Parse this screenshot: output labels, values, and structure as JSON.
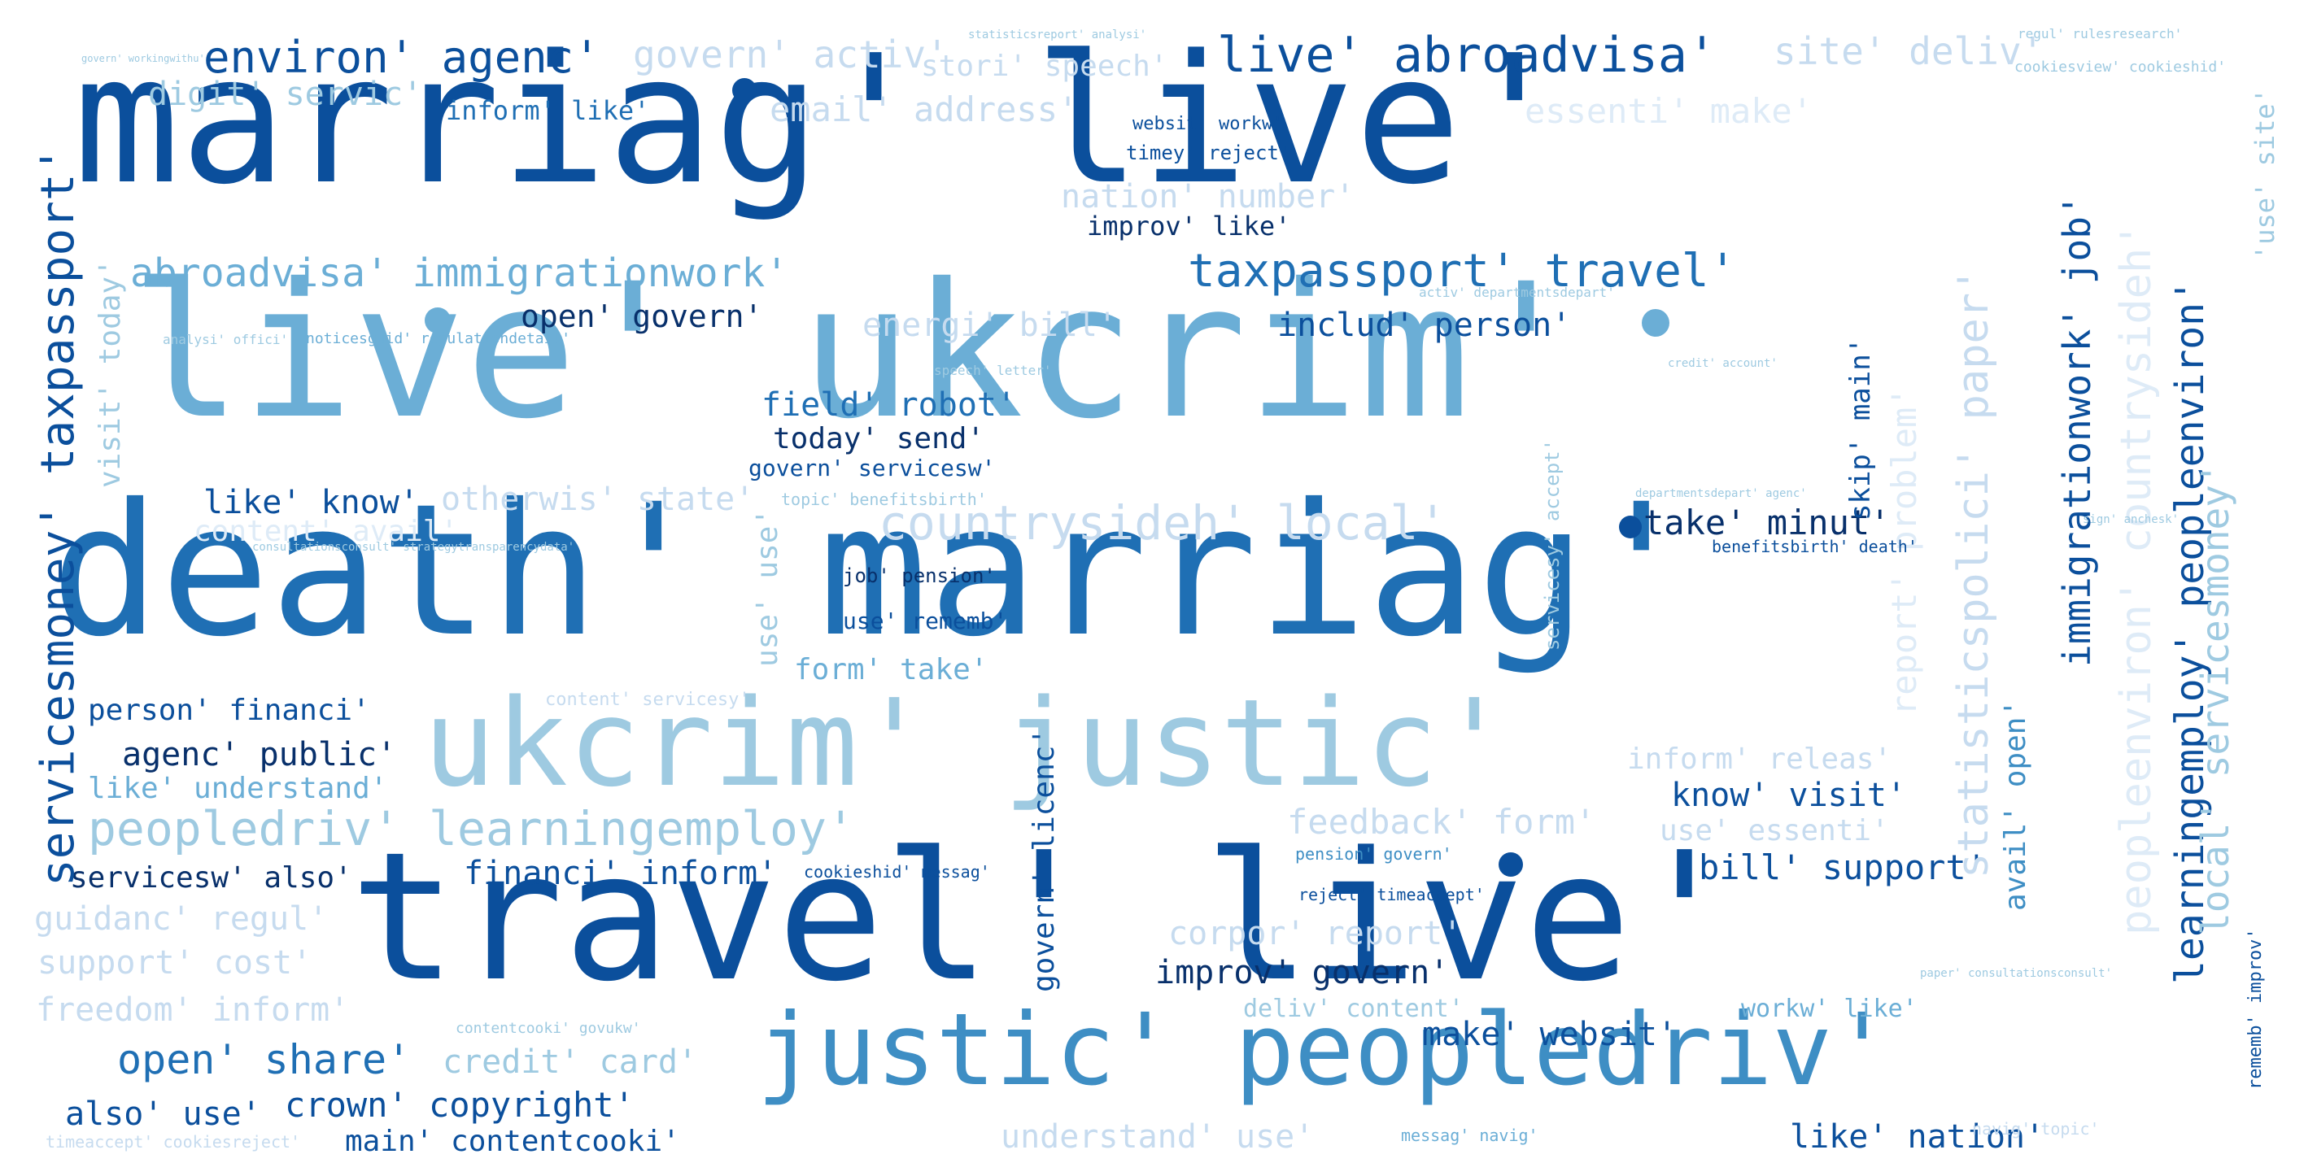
{
  "palette": [
    "#08306b",
    "#0b4f9c",
    "#1f6fb4",
    "#3e8ec4",
    "#6baed6",
    "#9ecae1",
    "#c6dbef",
    "#deebf7"
  ],
  "words": {
    "w01": "marriag' live'",
    "w02": "live' ukcrim'",
    "w03": "death' marriag'",
    "w04": "travel' live'",
    "w05": "ukcrim' justic'",
    "w06": "justic' peopledriv'",
    "w07": "environ' agenc'",
    "w08": "govern' activ'",
    "w09": "live' abroadvisa'",
    "w10": "site' deliv'",
    "w11": "digit' servic'",
    "w12": "stori' speech'",
    "w13": "inform' like'",
    "w14": "email' address'",
    "w15": "essenti' make'",
    "w16": "nation' number'",
    "w17": "improv' like'",
    "w18": "abroadvisa' immigrationwork'",
    "w19": "taxpassport' travel'",
    "w20": "open' govern'",
    "w21": "energi' bill'",
    "w22": "includ' person'",
    "w23": "field' robot'",
    "w24": "today' send'",
    "w25": "like' know'",
    "w26": "otherwis' state'",
    "w27": "govern' servicesw'",
    "w28": "countrysideh' local'",
    "w29": "take' minut'",
    "w30": "content' avail'",
    "w31": "job' pension'",
    "w32": "use' rememb'",
    "w33": "form' take'",
    "w34": "person' financi'",
    "w35": "agenc' public'",
    "w36": "like' understand'",
    "w37": "peopledriv' learningemploy'",
    "w38": "feedback' form'",
    "w39": "inform' releas'",
    "w40": "know' visit'",
    "w41": "use' essenti'",
    "w42": "servicesw' also'",
    "w43": "financi' inform'",
    "w44": "bill' support'",
    "w45": "guidanc' regul'",
    "w46": "corpor' report'",
    "w47": "support' cost'",
    "w48": "improv' govern'",
    "w49": "freedom' inform'",
    "w50": "deliv' content'",
    "w51": "make' websit'",
    "w52": "workw' like'",
    "w53": "open' share'",
    "w54": "credit' card'",
    "w55": "also' use'",
    "w56": "crown' copyright'",
    "w57": "main' contentcooki'",
    "w58": "understand' use'",
    "w59": "like' nation'",
    "w60": "servicesmoney' taxpassport'",
    "w61": "visit' today'",
    "w62": "use' use'",
    "w63": "statisticspolici' paper'",
    "w64": "immigrationwork' job'",
    "w65": "report' problem'",
    "w66": "skip' main'",
    "w67": "servicesy' accept'",
    "w68": "avail' open'",
    "w69": "govern' licenc'",
    "w70": "peopleenviron' countrysideh'",
    "w71": "learningemploy' peopleenviron'",
    "w72": "local' servicesmoney'",
    "w73": "'use' site'",
    "w74": "rememb' improv'",
    "w75": "websit' workw'",
    "w76": "timey' reject'",
    "w77": "statisticsreport' analysi'",
    "w78": "regul' rulesresearch'",
    "w79": "cookiesview' cookieshid'",
    "w80": "content' servicesy'",
    "w81": "cookieshid' messag'",
    "w82": "pension' govern'",
    "w83": "reject' timeaccept'",
    "w84": "benefitsbirth' death'",
    "w85": "messag' navig'",
    "w86": "timeaccept' cookiesreject'",
    "w87": "navig' topic'",
    "w88": "noticesguid' regulationdetail'",
    "w89": "analysi' offici'",
    "w90": "departmentsdepart' agenc'",
    "w91": "consultationsconsult' strategytransparencydata'",
    "w92": "credit' account'",
    "w93": "sign' anchesk'",
    "w94": "paper' consultationsconsult'",
    "w95": "topic' benefitsbirth'",
    "w96": "contentcooki' govukw'",
    "w97": "speech' letter'",
    "w98": "activ' departmentsdepart'",
    "w99": "govern' workingwithu'"
  }
}
